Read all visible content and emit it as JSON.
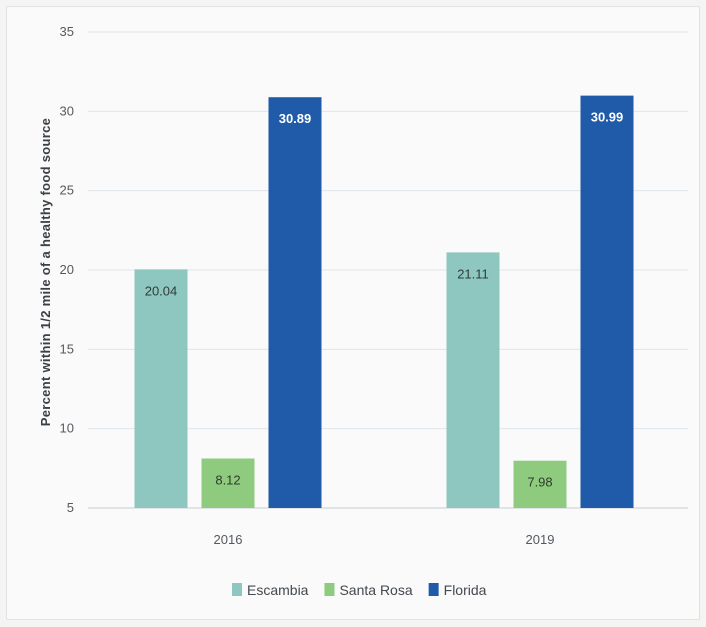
{
  "chart_data": {
    "type": "bar",
    "title": "",
    "xlabel": "",
    "ylabel": "Percent within 1/2 mile of a healthy food source",
    "categories": [
      "2016",
      "2019"
    ],
    "ylim": [
      5,
      35
    ],
    "yticks": [
      5,
      10,
      15,
      20,
      25,
      30,
      35
    ],
    "grid": true,
    "legend_position": "bottom",
    "series": [
      {
        "name": "Escambia",
        "values": [
          20.04,
          21.11
        ],
        "labels": [
          "20.04",
          "21.11"
        ],
        "color": "#8ec7bf",
        "label_color": "#2f3b3a"
      },
      {
        "name": "Santa Rosa",
        "values": [
          8.12,
          7.98
        ],
        "labels": [
          "8.12",
          "7.98"
        ],
        "color": "#8fcb7f",
        "label_color": "#2f3b2c"
      },
      {
        "name": "Florida",
        "values": [
          30.89,
          30.99
        ],
        "labels": [
          "30.89",
          "30.99"
        ],
        "color": "#1f5ba8",
        "label_color": "#ffffff"
      }
    ]
  }
}
